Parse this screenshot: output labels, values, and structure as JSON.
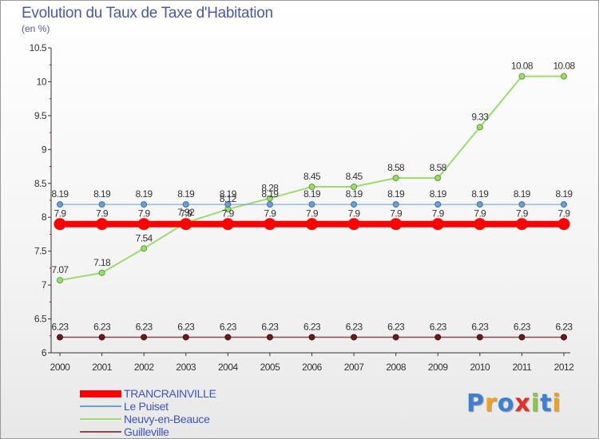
{
  "chart_data": {
    "type": "line",
    "title": "Evolution du Taux de Taxe d'Habitation",
    "subtitle": "(en %)",
    "ylim": [
      6,
      10.5
    ],
    "yticks": [
      "6",
      "6.5",
      "7",
      "7.5",
      "8",
      "8.5",
      "9",
      "9.5",
      "10",
      "10.5"
    ],
    "ytick_values": [
      6,
      6.5,
      7,
      7.5,
      8,
      8.5,
      9,
      9.5,
      10,
      10.5
    ],
    "categories": [
      "2000",
      "2001",
      "2002",
      "2003",
      "2004",
      "2005",
      "2006",
      "2007",
      "2008",
      "2009",
      "2010",
      "2011",
      "2012"
    ],
    "grid": false,
    "legend_position": "bottom-left",
    "series": [
      {
        "name": "TRANCRAINVILLE",
        "color": "#ff0000",
        "values": [
          7.9,
          7.9,
          7.9,
          7.9,
          7.9,
          7.9,
          7.9,
          7.9,
          7.9,
          7.9,
          7.9,
          7.9,
          7.9
        ],
        "labels": [
          "7.9",
          "7.9",
          "7.9",
          "7.9",
          "7.9",
          "7.9",
          "7.9",
          "7.9",
          "7.9",
          "7.9",
          "7.9",
          "7.9",
          "7.9"
        ]
      },
      {
        "name": "Le Puiset",
        "color": "#6b9ed4",
        "values": [
          8.19,
          8.19,
          8.19,
          8.19,
          8.19,
          8.19,
          8.19,
          8.19,
          8.19,
          8.19,
          8.19,
          8.19,
          8.19
        ],
        "labels": [
          "8.19",
          "8.19",
          "8.19",
          "8.19",
          "8.19",
          "8.19",
          "8.19",
          "8.19",
          "8.19",
          "8.19",
          "8.19",
          "8.19",
          "8.19"
        ]
      },
      {
        "name": "Neuvy-en-Beauce",
        "color": "#9ddb6e",
        "values": [
          7.07,
          7.18,
          7.54,
          7.92,
          8.12,
          8.28,
          8.45,
          8.45,
          8.58,
          8.58,
          9.33,
          10.08,
          10.08
        ],
        "labels": [
          "7.07",
          "7.18",
          "7.54",
          "7.92",
          "8.12",
          "8.28",
          "8.45",
          "8.45",
          "8.58",
          "8.58",
          "9.33",
          "10.08",
          "10.08"
        ]
      },
      {
        "name": "Guilleville",
        "color": "#8b4a4a",
        "values": [
          6.23,
          6.23,
          6.23,
          6.23,
          6.23,
          6.23,
          6.23,
          6.23,
          6.23,
          6.23,
          6.23,
          6.23,
          6.23
        ],
        "labels": [
          "6.23",
          "6.23",
          "6.23",
          "6.23",
          "6.23",
          "6.23",
          "6.23",
          "6.23",
          "6.23",
          "6.23",
          "6.23",
          "6.23",
          "6.23"
        ]
      }
    ]
  },
  "logo": {
    "text": "Proxiti",
    "letters": [
      {
        "char": "P",
        "color": "#3f7fd1"
      },
      {
        "char": "r",
        "color": "#f0a020"
      },
      {
        "char": "o",
        "color": "#3f7fd1"
      },
      {
        "char": "x",
        "color": "#e0302a"
      },
      {
        "char": "i",
        "color": "#8cc63f"
      },
      {
        "char": "t",
        "color": "#3f7fd1"
      },
      {
        "char": "i",
        "color": "#f0a020"
      }
    ]
  }
}
